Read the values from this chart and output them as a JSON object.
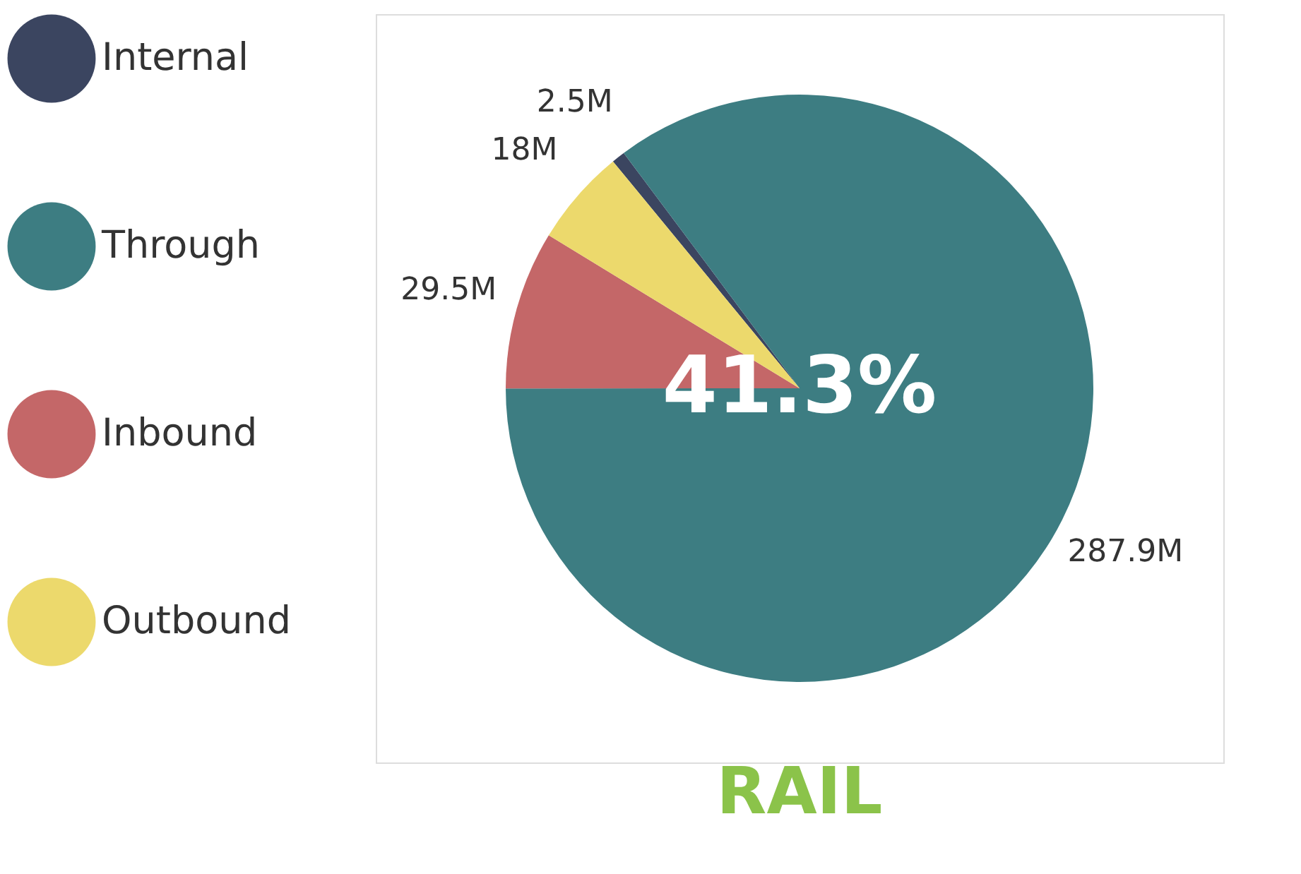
{
  "chart_data": {
    "type": "pie",
    "title": "RAIL",
    "categories": [
      "Internal",
      "Through",
      "Inbound",
      "Outbound"
    ],
    "values": [
      2.5,
      287.9,
      29.5,
      18
    ],
    "colors": [
      "#3b4560",
      "#3d7d82",
      "#c46768",
      "#ecd96c"
    ],
    "value_labels": [
      "2.5M",
      "287.9M",
      "29.5M",
      "18M"
    ],
    "annotations": [
      "41.3%"
    ],
    "legend": "left"
  }
}
